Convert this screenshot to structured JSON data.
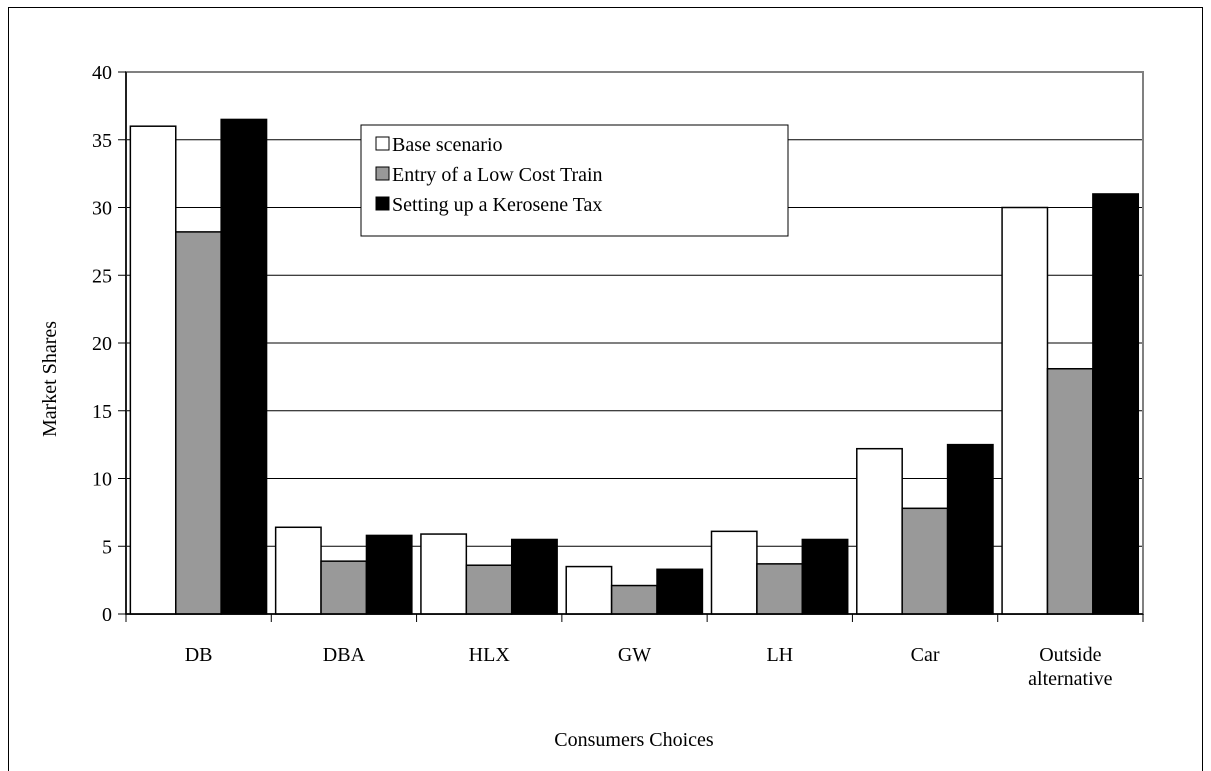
{
  "chart_data": {
    "type": "bar",
    "title": "",
    "xlabel": "Consumers Choices",
    "ylabel": "Market Shares",
    "ylim": [
      0,
      40
    ],
    "yticks": [
      "0",
      "5",
      "10",
      "15",
      "20",
      "25",
      "30",
      "35",
      "40"
    ],
    "grid": true,
    "legend_position": "top-center",
    "categories": [
      [
        "DB"
      ],
      [
        "DBA"
      ],
      [
        "HLX"
      ],
      [
        "GW"
      ],
      [
        "LH"
      ],
      [
        "Car"
      ],
      [
        "Outside",
        "alternative"
      ]
    ],
    "series": [
      {
        "name": "Base scenario",
        "color": "#ffffff",
        "values": [
          36,
          6.4,
          5.9,
          3.5,
          6.1,
          12.2,
          30
        ]
      },
      {
        "name": "Entry of a Low Cost Train",
        "color": "#999999",
        "values": [
          28.2,
          3.9,
          3.6,
          2.1,
          3.7,
          7.8,
          18.1
        ]
      },
      {
        "name": "Setting up a Kerosene Tax",
        "color": "#000000",
        "values": [
          36.5,
          5.8,
          5.5,
          3.3,
          5.5,
          12.5,
          31
        ]
      }
    ]
  }
}
